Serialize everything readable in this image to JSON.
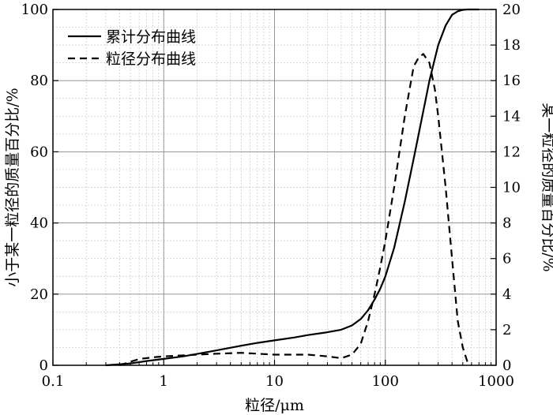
{
  "chart_data": {
    "type": "line",
    "xlabel": "粒径/μm",
    "ylabel_left": "小于某一粒径的质量百分比/%",
    "ylabel_right": "某一粒径的质量百分比/%",
    "x_scale": "log",
    "xlim": [
      0.1,
      1000
    ],
    "ylim_left": [
      0,
      100
    ],
    "ylim_right": [
      0,
      20
    ],
    "x_ticks": [
      0.1,
      1,
      10,
      100,
      1000
    ],
    "x_tick_labels": [
      "0.1",
      "1",
      "10",
      "100",
      "1000"
    ],
    "y_left_ticks": [
      0,
      20,
      40,
      60,
      80,
      100
    ],
    "y_left_tick_labels": [
      "0",
      "20",
      "40",
      "60",
      "80",
      "100"
    ],
    "y_right_ticks": [
      0,
      2,
      4,
      6,
      8,
      10,
      12,
      14,
      16,
      18,
      20
    ],
    "y_right_tick_labels": [
      "0",
      "2",
      "4",
      "6",
      "8",
      "10",
      "12",
      "14",
      "16",
      "18",
      "20"
    ],
    "grid": true,
    "legend_position": "top-left",
    "series": [
      {
        "name": "累计分布曲线",
        "axis": "left",
        "style": "solid",
        "x": [
          0.3,
          0.5,
          0.7,
          1,
          1.5,
          2,
          3,
          5,
          7,
          10,
          15,
          20,
          30,
          40,
          50,
          60,
          70,
          80,
          90,
          100,
          120,
          150,
          180,
          200,
          250,
          300,
          350,
          400,
          450,
          500,
          550,
          600,
          650,
          700
        ],
        "y": [
          0,
          0.5,
          1.2,
          1.8,
          2.5,
          3.2,
          4.2,
          5.5,
          6.3,
          7.0,
          7.8,
          8.5,
          9.3,
          10.0,
          11.2,
          13.0,
          15.5,
          18.5,
          21.5,
          25.0,
          33.0,
          46.0,
          58.0,
          65.0,
          80.0,
          90.0,
          95.5,
          98.5,
          99.5,
          99.9,
          100,
          100,
          100,
          100
        ]
      },
      {
        "name": "粒径分布曲线",
        "axis": "right",
        "style": "dashed",
        "x": [
          0.4,
          0.5,
          0.6,
          0.8,
          1,
          2,
          3,
          5,
          10,
          20,
          30,
          40,
          50,
          60,
          70,
          80,
          90,
          100,
          120,
          150,
          180,
          200,
          220,
          250,
          280,
          300,
          350,
          400,
          450,
          500,
          550,
          600
        ],
        "y": [
          0,
          0.2,
          0.35,
          0.45,
          0.5,
          0.6,
          0.65,
          0.7,
          0.6,
          0.6,
          0.5,
          0.4,
          0.6,
          1.2,
          2.5,
          4.0,
          5.5,
          7.0,
          10.0,
          14.0,
          16.8,
          17.3,
          17.5,
          17.0,
          15.5,
          14.0,
          10.0,
          6.0,
          2.5,
          1.0,
          0.2,
          0
        ]
      }
    ]
  }
}
